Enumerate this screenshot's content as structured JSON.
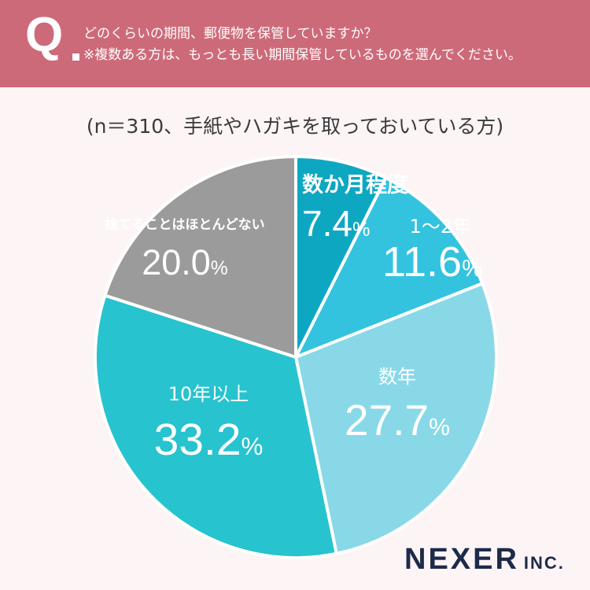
{
  "header": {
    "q_mark": "Q",
    "question_line1": "どのくらいの期間、郵便物を保管していますか？",
    "question_line2": "※複数ある方は、もっとも長い期間保管しているものを選んでください。"
  },
  "subtitle": "(n＝310、手紙やハガキを取っておいている方)",
  "chart_data": {
    "type": "pie",
    "n": 310,
    "slices": [
      {
        "label": "数か月程度",
        "value": 7.4,
        "display": "7.4",
        "color": "#0ea7c1"
      },
      {
        "label": "1〜2年",
        "value": 11.6,
        "display": "11.6",
        "color": "#33c3df"
      },
      {
        "label": "数年",
        "value": 27.7,
        "display": "27.7",
        "color": "#88d8e8"
      },
      {
        "label": "10年以上",
        "value": 33.2,
        "display": "33.2",
        "color": "#27c3cf"
      },
      {
        "label": "捨てることはほとんどない",
        "value": 20.0,
        "display": "20.0",
        "color": "#9b9b9b"
      }
    ],
    "percent_sign": "%"
  },
  "logo": {
    "main": "NEXER",
    "suffix": "INC."
  }
}
